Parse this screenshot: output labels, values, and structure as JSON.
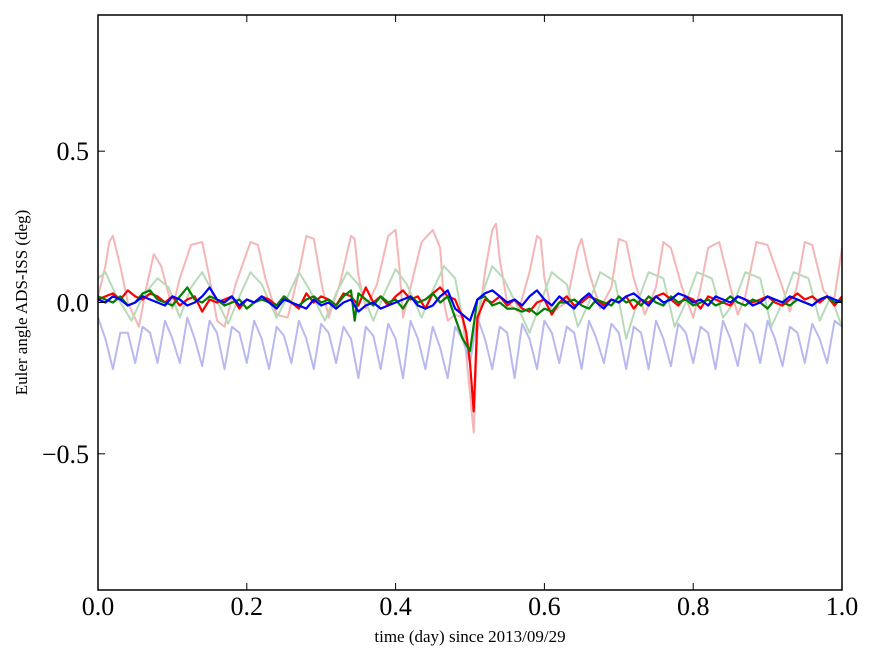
{
  "chart_data": {
    "type": "line",
    "xlabel": "time (day) since 2013/09/29",
    "ylabel": "Euler angle ADS-ISS (deg)",
    "xlim": [
      0.0,
      1.0
    ],
    "ylim": [
      -0.95,
      0.95
    ],
    "x_ticks": [
      0.0,
      0.2,
      0.4,
      0.6,
      0.8,
      1.0
    ],
    "x_tick_labels": [
      "0.0",
      "0.2",
      "0.4",
      "0.6",
      "0.8",
      "1.0"
    ],
    "y_ticks": [
      -0.5,
      0.0,
      0.5
    ],
    "y_tick_labels": [
      "−0.5",
      "0.0",
      "0.5"
    ],
    "grid": false,
    "legend": "none",
    "series": [
      {
        "color": "#f4b6b6",
        "x": [
          0.0,
          0.01,
          0.015,
          0.02,
          0.03,
          0.04,
          0.055,
          0.065,
          0.075,
          0.085,
          0.1,
          0.11,
          0.125,
          0.14,
          0.15,
          0.16,
          0.17,
          0.185,
          0.205,
          0.215,
          0.225,
          0.24,
          0.255,
          0.27,
          0.28,
          0.29,
          0.3,
          0.31,
          0.325,
          0.34,
          0.345,
          0.35,
          0.36,
          0.375,
          0.39,
          0.4,
          0.405,
          0.41,
          0.42,
          0.435,
          0.45,
          0.46,
          0.465,
          0.47,
          0.48,
          0.49,
          0.5,
          0.505,
          0.51,
          0.52,
          0.53,
          0.535,
          0.54,
          0.55,
          0.565,
          0.58,
          0.59,
          0.595,
          0.6,
          0.61,
          0.63,
          0.645,
          0.65,
          0.66,
          0.675,
          0.69,
          0.7,
          0.71,
          0.72,
          0.735,
          0.75,
          0.76,
          0.77,
          0.785,
          0.8,
          0.81,
          0.82,
          0.835,
          0.85,
          0.86,
          0.87,
          0.885,
          0.9,
          0.92,
          0.93,
          0.94,
          0.95,
          0.96,
          0.975,
          0.985,
          0.99,
          1.0
        ],
        "y": [
          0.02,
          0.12,
          0.2,
          0.22,
          0.12,
          0.0,
          -0.08,
          0.05,
          0.16,
          0.12,
          -0.02,
          0.08,
          0.19,
          0.2,
          0.08,
          -0.06,
          -0.08,
          0.06,
          0.2,
          0.19,
          0.08,
          -0.04,
          -0.05,
          0.1,
          0.22,
          0.21,
          0.07,
          -0.05,
          0.06,
          0.22,
          0.21,
          0.09,
          -0.02,
          0.06,
          0.22,
          0.24,
          0.12,
          -0.05,
          0.05,
          0.2,
          0.24,
          0.18,
          0.0,
          -0.06,
          -0.04,
          -0.05,
          -0.3,
          -0.43,
          -0.1,
          0.1,
          0.24,
          0.26,
          0.14,
          0.0,
          -0.03,
          0.1,
          0.22,
          0.21,
          0.08,
          -0.03,
          0.0,
          0.18,
          0.21,
          0.1,
          -0.02,
          0.05,
          0.21,
          0.2,
          0.08,
          -0.04,
          0.05,
          0.2,
          0.18,
          0.05,
          -0.05,
          0.05,
          0.18,
          0.2,
          0.05,
          -0.04,
          0.02,
          0.2,
          0.19,
          0.05,
          -0.03,
          0.06,
          0.2,
          0.19,
          0.04,
          0.01,
          0.02,
          0.18
        ]
      },
      {
        "color": "#b9dab9",
        "x": [
          0.0,
          0.01,
          0.025,
          0.045,
          0.06,
          0.08,
          0.095,
          0.11,
          0.125,
          0.14,
          0.155,
          0.175,
          0.19,
          0.205,
          0.22,
          0.24,
          0.255,
          0.27,
          0.285,
          0.305,
          0.32,
          0.335,
          0.35,
          0.37,
          0.385,
          0.4,
          0.415,
          0.435,
          0.45,
          0.465,
          0.48,
          0.5,
          0.515,
          0.53,
          0.545,
          0.565,
          0.58,
          0.595,
          0.61,
          0.63,
          0.645,
          0.66,
          0.675,
          0.695,
          0.71,
          0.725,
          0.74,
          0.76,
          0.775,
          0.79,
          0.805,
          0.825,
          0.84,
          0.855,
          0.87,
          0.89,
          0.905,
          0.92,
          0.935,
          0.955,
          0.97,
          0.985,
          1.0
        ],
        "y": [
          0.08,
          0.1,
          0.02,
          -0.06,
          0.02,
          0.08,
          0.05,
          -0.05,
          0.05,
          0.1,
          0.03,
          -0.07,
          0.02,
          0.1,
          0.06,
          -0.05,
          0.02,
          0.1,
          0.04,
          -0.06,
          0.03,
          0.1,
          0.06,
          -0.06,
          0.03,
          0.11,
          0.06,
          -0.05,
          0.04,
          0.12,
          0.08,
          -0.18,
          0.02,
          0.12,
          0.08,
          -0.02,
          -0.1,
          0.0,
          0.1,
          0.06,
          -0.08,
          0.0,
          0.1,
          0.07,
          -0.12,
          0.0,
          0.1,
          0.08,
          -0.08,
          0.0,
          0.1,
          0.08,
          -0.05,
          0.0,
          0.1,
          0.08,
          -0.08,
          0.0,
          0.1,
          0.08,
          -0.06,
          0.02,
          -0.08
        ]
      },
      {
        "color": "#b9b9f0",
        "x": [
          0.0,
          0.01,
          0.02,
          0.03,
          0.04,
          0.05,
          0.06,
          0.07,
          0.08,
          0.09,
          0.1,
          0.11,
          0.12,
          0.13,
          0.14,
          0.15,
          0.16,
          0.17,
          0.18,
          0.19,
          0.2,
          0.21,
          0.22,
          0.23,
          0.24,
          0.25,
          0.26,
          0.27,
          0.28,
          0.29,
          0.3,
          0.31,
          0.32,
          0.33,
          0.34,
          0.35,
          0.36,
          0.37,
          0.38,
          0.39,
          0.4,
          0.41,
          0.42,
          0.43,
          0.44,
          0.45,
          0.46,
          0.47,
          0.48,
          0.49,
          0.5,
          0.51,
          0.52,
          0.53,
          0.54,
          0.55,
          0.56,
          0.57,
          0.58,
          0.59,
          0.6,
          0.61,
          0.62,
          0.63,
          0.64,
          0.65,
          0.66,
          0.67,
          0.68,
          0.69,
          0.7,
          0.71,
          0.72,
          0.73,
          0.74,
          0.75,
          0.76,
          0.77,
          0.78,
          0.79,
          0.8,
          0.81,
          0.82,
          0.83,
          0.84,
          0.85,
          0.86,
          0.87,
          0.88,
          0.89,
          0.9,
          0.91,
          0.92,
          0.93,
          0.94,
          0.95,
          0.96,
          0.97,
          0.98,
          0.99,
          1.0
        ],
        "y": [
          -0.05,
          -0.12,
          -0.22,
          -0.1,
          -0.1,
          -0.2,
          -0.08,
          -0.1,
          -0.2,
          -0.06,
          -0.12,
          -0.2,
          -0.05,
          -0.12,
          -0.21,
          -0.06,
          -0.1,
          -0.22,
          -0.08,
          -0.1,
          -0.2,
          -0.06,
          -0.12,
          -0.22,
          -0.08,
          -0.11,
          -0.2,
          -0.06,
          -0.12,
          -0.22,
          -0.07,
          -0.1,
          -0.2,
          -0.08,
          -0.12,
          -0.25,
          -0.08,
          -0.11,
          -0.22,
          -0.07,
          -0.12,
          -0.25,
          -0.06,
          -0.12,
          -0.22,
          -0.08,
          -0.15,
          -0.25,
          -0.08,
          -0.12,
          -0.2,
          -0.05,
          -0.12,
          -0.22,
          -0.08,
          -0.1,
          -0.25,
          -0.07,
          -0.12,
          -0.22,
          -0.06,
          -0.1,
          -0.2,
          -0.08,
          -0.1,
          -0.22,
          -0.06,
          -0.12,
          -0.2,
          -0.07,
          -0.1,
          -0.22,
          -0.08,
          -0.1,
          -0.22,
          -0.06,
          -0.12,
          -0.21,
          -0.07,
          -0.1,
          -0.2,
          -0.08,
          -0.1,
          -0.22,
          -0.06,
          -0.12,
          -0.21,
          -0.07,
          -0.1,
          -0.2,
          -0.06,
          -0.12,
          -0.21,
          -0.08,
          -0.1,
          -0.2,
          -0.07,
          -0.12,
          -0.2,
          -0.06,
          -0.08
        ]
      },
      {
        "color": "#ff0000",
        "x": [
          0.0,
          0.01,
          0.02,
          0.03,
          0.04,
          0.05,
          0.06,
          0.07,
          0.08,
          0.09,
          0.1,
          0.11,
          0.12,
          0.13,
          0.14,
          0.15,
          0.16,
          0.17,
          0.18,
          0.19,
          0.2,
          0.21,
          0.22,
          0.23,
          0.24,
          0.25,
          0.26,
          0.27,
          0.28,
          0.29,
          0.3,
          0.31,
          0.32,
          0.33,
          0.34,
          0.35,
          0.36,
          0.37,
          0.38,
          0.39,
          0.4,
          0.41,
          0.42,
          0.43,
          0.44,
          0.45,
          0.46,
          0.47,
          0.48,
          0.49,
          0.495,
          0.5,
          0.505,
          0.51,
          0.52,
          0.53,
          0.54,
          0.55,
          0.56,
          0.57,
          0.58,
          0.59,
          0.6,
          0.61,
          0.62,
          0.63,
          0.64,
          0.65,
          0.66,
          0.67,
          0.68,
          0.69,
          0.7,
          0.71,
          0.72,
          0.73,
          0.74,
          0.75,
          0.76,
          0.77,
          0.78,
          0.79,
          0.8,
          0.81,
          0.82,
          0.83,
          0.84,
          0.85,
          0.86,
          0.87,
          0.88,
          0.89,
          0.9,
          0.91,
          0.92,
          0.93,
          0.94,
          0.95,
          0.96,
          0.97,
          0.98,
          0.99,
          1.0
        ],
        "y": [
          0.01,
          0.02,
          0.03,
          0.01,
          0.04,
          0.02,
          0.01,
          0.03,
          0.02,
          0.0,
          0.02,
          -0.01,
          0.01,
          0.02,
          -0.03,
          0.01,
          0.0,
          0.01,
          0.02,
          -0.02,
          0.01,
          0.0,
          0.02,
          0.01,
          -0.01,
          0.02,
          0.0,
          -0.02,
          0.03,
          0.0,
          0.02,
          0.01,
          -0.01,
          0.03,
          0.02,
          -0.01,
          0.05,
          0.0,
          0.02,
          -0.01,
          0.02,
          0.04,
          0.01,
          0.02,
          -0.02,
          0.03,
          0.05,
          0.02,
          0.01,
          -0.05,
          -0.1,
          -0.2,
          -0.36,
          -0.05,
          0.01,
          0.0,
          0.02,
          -0.01,
          0.01,
          -0.02,
          -0.03,
          0.0,
          0.01,
          -0.04,
          0.0,
          0.02,
          -0.01,
          0.0,
          0.02,
          0.01,
          -0.01,
          0.01,
          0.0,
          0.02,
          -0.02,
          0.01,
          0.0,
          0.02,
          0.03,
          0.01,
          -0.01,
          0.02,
          0.01,
          -0.02,
          0.02,
          0.01,
          0.0,
          -0.01,
          0.02,
          0.01,
          0.0,
          0.01,
          0.02,
          0.0,
          -0.01,
          0.01,
          0.03,
          0.01,
          0.02,
          0.0,
          0.02,
          -0.01,
          0.02
        ]
      },
      {
        "color": "#008000",
        "x": [
          0.0,
          0.01,
          0.02,
          0.03,
          0.04,
          0.05,
          0.06,
          0.07,
          0.08,
          0.09,
          0.1,
          0.11,
          0.12,
          0.13,
          0.14,
          0.15,
          0.16,
          0.17,
          0.18,
          0.19,
          0.2,
          0.21,
          0.22,
          0.23,
          0.24,
          0.25,
          0.26,
          0.27,
          0.28,
          0.29,
          0.3,
          0.31,
          0.32,
          0.33,
          0.34,
          0.345,
          0.35,
          0.36,
          0.37,
          0.38,
          0.39,
          0.4,
          0.41,
          0.42,
          0.43,
          0.44,
          0.45,
          0.46,
          0.47,
          0.48,
          0.49,
          0.5,
          0.51,
          0.52,
          0.53,
          0.54,
          0.55,
          0.56,
          0.57,
          0.58,
          0.59,
          0.6,
          0.61,
          0.62,
          0.63,
          0.64,
          0.65,
          0.66,
          0.67,
          0.68,
          0.69,
          0.7,
          0.71,
          0.72,
          0.73,
          0.74,
          0.75,
          0.76,
          0.77,
          0.78,
          0.79,
          0.8,
          0.81,
          0.82,
          0.83,
          0.84,
          0.85,
          0.86,
          0.87,
          0.88,
          0.89,
          0.9,
          0.91,
          0.92,
          0.93,
          0.94,
          0.95,
          0.96,
          0.97,
          0.98,
          0.99,
          1.0
        ],
        "y": [
          0.02,
          0.01,
          0.0,
          0.02,
          -0.01,
          0.0,
          0.03,
          0.04,
          0.01,
          0.0,
          -0.01,
          0.02,
          0.05,
          0.01,
          0.0,
          0.02,
          0.01,
          -0.01,
          0.0,
          0.01,
          -0.02,
          0.0,
          0.01,
          0.0,
          -0.01,
          0.02,
          0.0,
          -0.01,
          0.01,
          0.02,
          0.0,
          0.01,
          -0.01,
          0.02,
          0.04,
          -0.06,
          0.03,
          0.01,
          -0.01,
          0.02,
          0.0,
          0.01,
          -0.02,
          0.02,
          0.0,
          0.01,
          0.03,
          0.0,
          0.02,
          -0.05,
          -0.12,
          -0.16,
          0.01,
          0.02,
          -0.01,
          0.0,
          -0.02,
          -0.02,
          -0.03,
          -0.02,
          -0.04,
          -0.02,
          -0.03,
          0.0,
          0.0,
          0.01,
          -0.01,
          -0.02,
          0.01,
          0.0,
          -0.01,
          0.02,
          0.0,
          0.01,
          -0.01,
          0.02,
          0.0,
          -0.01,
          0.02,
          0.0,
          0.01,
          -0.01,
          0.0,
          0.01,
          -0.01,
          0.0,
          0.02,
          0.0,
          -0.01,
          0.01,
          0.0,
          -0.02,
          0.01,
          0.0,
          -0.01,
          0.01,
          0.0,
          -0.01,
          0.01,
          0.02,
          0.0,
          0.01
        ]
      },
      {
        "color": "#0000ff",
        "x": [
          0.0,
          0.01,
          0.02,
          0.03,
          0.04,
          0.05,
          0.06,
          0.07,
          0.08,
          0.09,
          0.1,
          0.11,
          0.12,
          0.13,
          0.14,
          0.15,
          0.16,
          0.17,
          0.18,
          0.19,
          0.2,
          0.21,
          0.22,
          0.23,
          0.24,
          0.25,
          0.26,
          0.27,
          0.28,
          0.29,
          0.3,
          0.31,
          0.32,
          0.33,
          0.34,
          0.35,
          0.36,
          0.37,
          0.38,
          0.39,
          0.4,
          0.41,
          0.42,
          0.43,
          0.44,
          0.45,
          0.46,
          0.47,
          0.48,
          0.49,
          0.5,
          0.51,
          0.52,
          0.53,
          0.54,
          0.55,
          0.56,
          0.57,
          0.58,
          0.59,
          0.6,
          0.61,
          0.62,
          0.63,
          0.64,
          0.65,
          0.66,
          0.67,
          0.68,
          0.69,
          0.7,
          0.71,
          0.72,
          0.73,
          0.74,
          0.75,
          0.76,
          0.77,
          0.78,
          0.79,
          0.8,
          0.81,
          0.82,
          0.83,
          0.84,
          0.85,
          0.86,
          0.87,
          0.88,
          0.89,
          0.9,
          0.91,
          0.92,
          0.93,
          0.94,
          0.95,
          0.96,
          0.97,
          0.98,
          0.99,
          1.0
        ],
        "y": [
          0.01,
          0.0,
          0.02,
          0.01,
          -0.01,
          0.0,
          0.02,
          0.01,
          0.0,
          -0.01,
          0.02,
          0.01,
          -0.01,
          0.0,
          0.02,
          0.05,
          0.01,
          0.0,
          0.02,
          -0.01,
          0.01,
          0.0,
          0.02,
          0.0,
          -0.02,
          0.01,
          0.0,
          -0.01,
          -0.02,
          0.01,
          -0.01,
          0.0,
          -0.02,
          0.0,
          0.01,
          -0.03,
          -0.01,
          0.0,
          -0.02,
          -0.01,
          0.0,
          0.01,
          0.02,
          -0.01,
          -0.02,
          -0.01,
          0.02,
          0.04,
          -0.02,
          -0.04,
          -0.06,
          0.01,
          0.03,
          0.04,
          0.02,
          0.0,
          0.01,
          -0.01,
          0.02,
          0.04,
          0.01,
          -0.01,
          0.02,
          0.0,
          -0.02,
          0.01,
          0.03,
          0.0,
          -0.02,
          0.01,
          0.0,
          0.02,
          0.03,
          0.01,
          -0.01,
          0.02,
          0.0,
          0.01,
          0.03,
          0.02,
          0.0,
          0.01,
          -0.01,
          0.02,
          0.01,
          0.0,
          0.02,
          0.01,
          -0.01,
          0.0,
          0.02,
          0.01,
          0.0,
          0.02,
          0.01,
          0.0,
          -0.01,
          0.01,
          0.02,
          0.01,
          0.0
        ]
      }
    ]
  }
}
